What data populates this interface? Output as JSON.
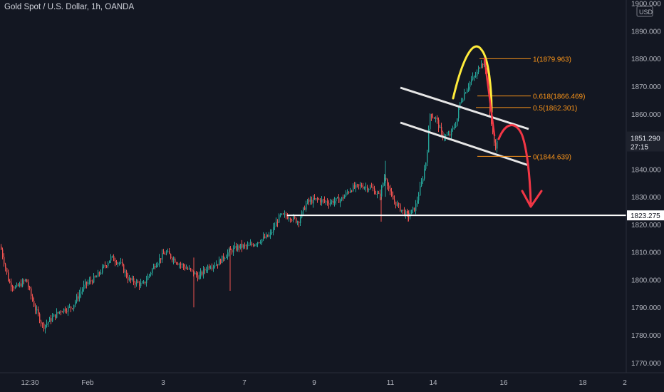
{
  "chart_title": "Gold Spot / U.S. Dollar, 1h, OANDA",
  "currency_label": "USD",
  "current_price": "1851.290",
  "countdown": "27:15",
  "support_price": "1823.275",
  "colors": {
    "background": "#131722",
    "up": "#26a69a",
    "down": "#ef5350",
    "fib": "#f7931a",
    "channel": "#e6e6e6",
    "arc_yellow": "#ffeb3b",
    "arc_red": "#f23645",
    "axis_text": "#b2b5be"
  },
  "chart_data": {
    "type": "candlestick",
    "title": "Gold Spot / U.S. Dollar, 1h, OANDA",
    "ylim": [
      1765,
      1902
    ],
    "y_ticks": [
      "1900.000",
      "1890.000",
      "1880.000",
      "1870.000",
      "1860.000",
      "1850.000",
      "1840.000",
      "1830.000",
      "1820.000",
      "1810.000",
      "1800.000",
      "1790.000",
      "1780.000",
      "1770.000"
    ],
    "x_ticks": [
      "12:30",
      "Feb",
      "3",
      "7",
      "9",
      "11",
      "14",
      "16",
      "18",
      "2"
    ],
    "key_points": [
      {
        "label": "12:30",
        "close": 1797
      },
      {
        "label": "Feb",
        "close": 1790
      },
      {
        "label": "3",
        "close": 1806
      },
      {
        "label": "7",
        "close": 1805
      },
      {
        "label": "9",
        "close": 1829
      },
      {
        "label": "11",
        "close": 1833
      },
      {
        "label": "14",
        "close": 1852
      },
      {
        "label": "peak",
        "close": 1879.96
      },
      {
        "label": "last",
        "close": 1851.29
      }
    ],
    "fibonacci": [
      {
        "label": "1(1879.963)",
        "value": 1879.963
      },
      {
        "label": "0.618(1866.469)",
        "value": 1866.469
      },
      {
        "label": "0.5(1862.301)",
        "value": 1862.301
      },
      {
        "label": "0(1844.639)",
        "value": 1844.639
      }
    ],
    "horizontal_line": {
      "value": 1823.275,
      "label": "1823.275"
    },
    "last_price": 1851.29
  }
}
